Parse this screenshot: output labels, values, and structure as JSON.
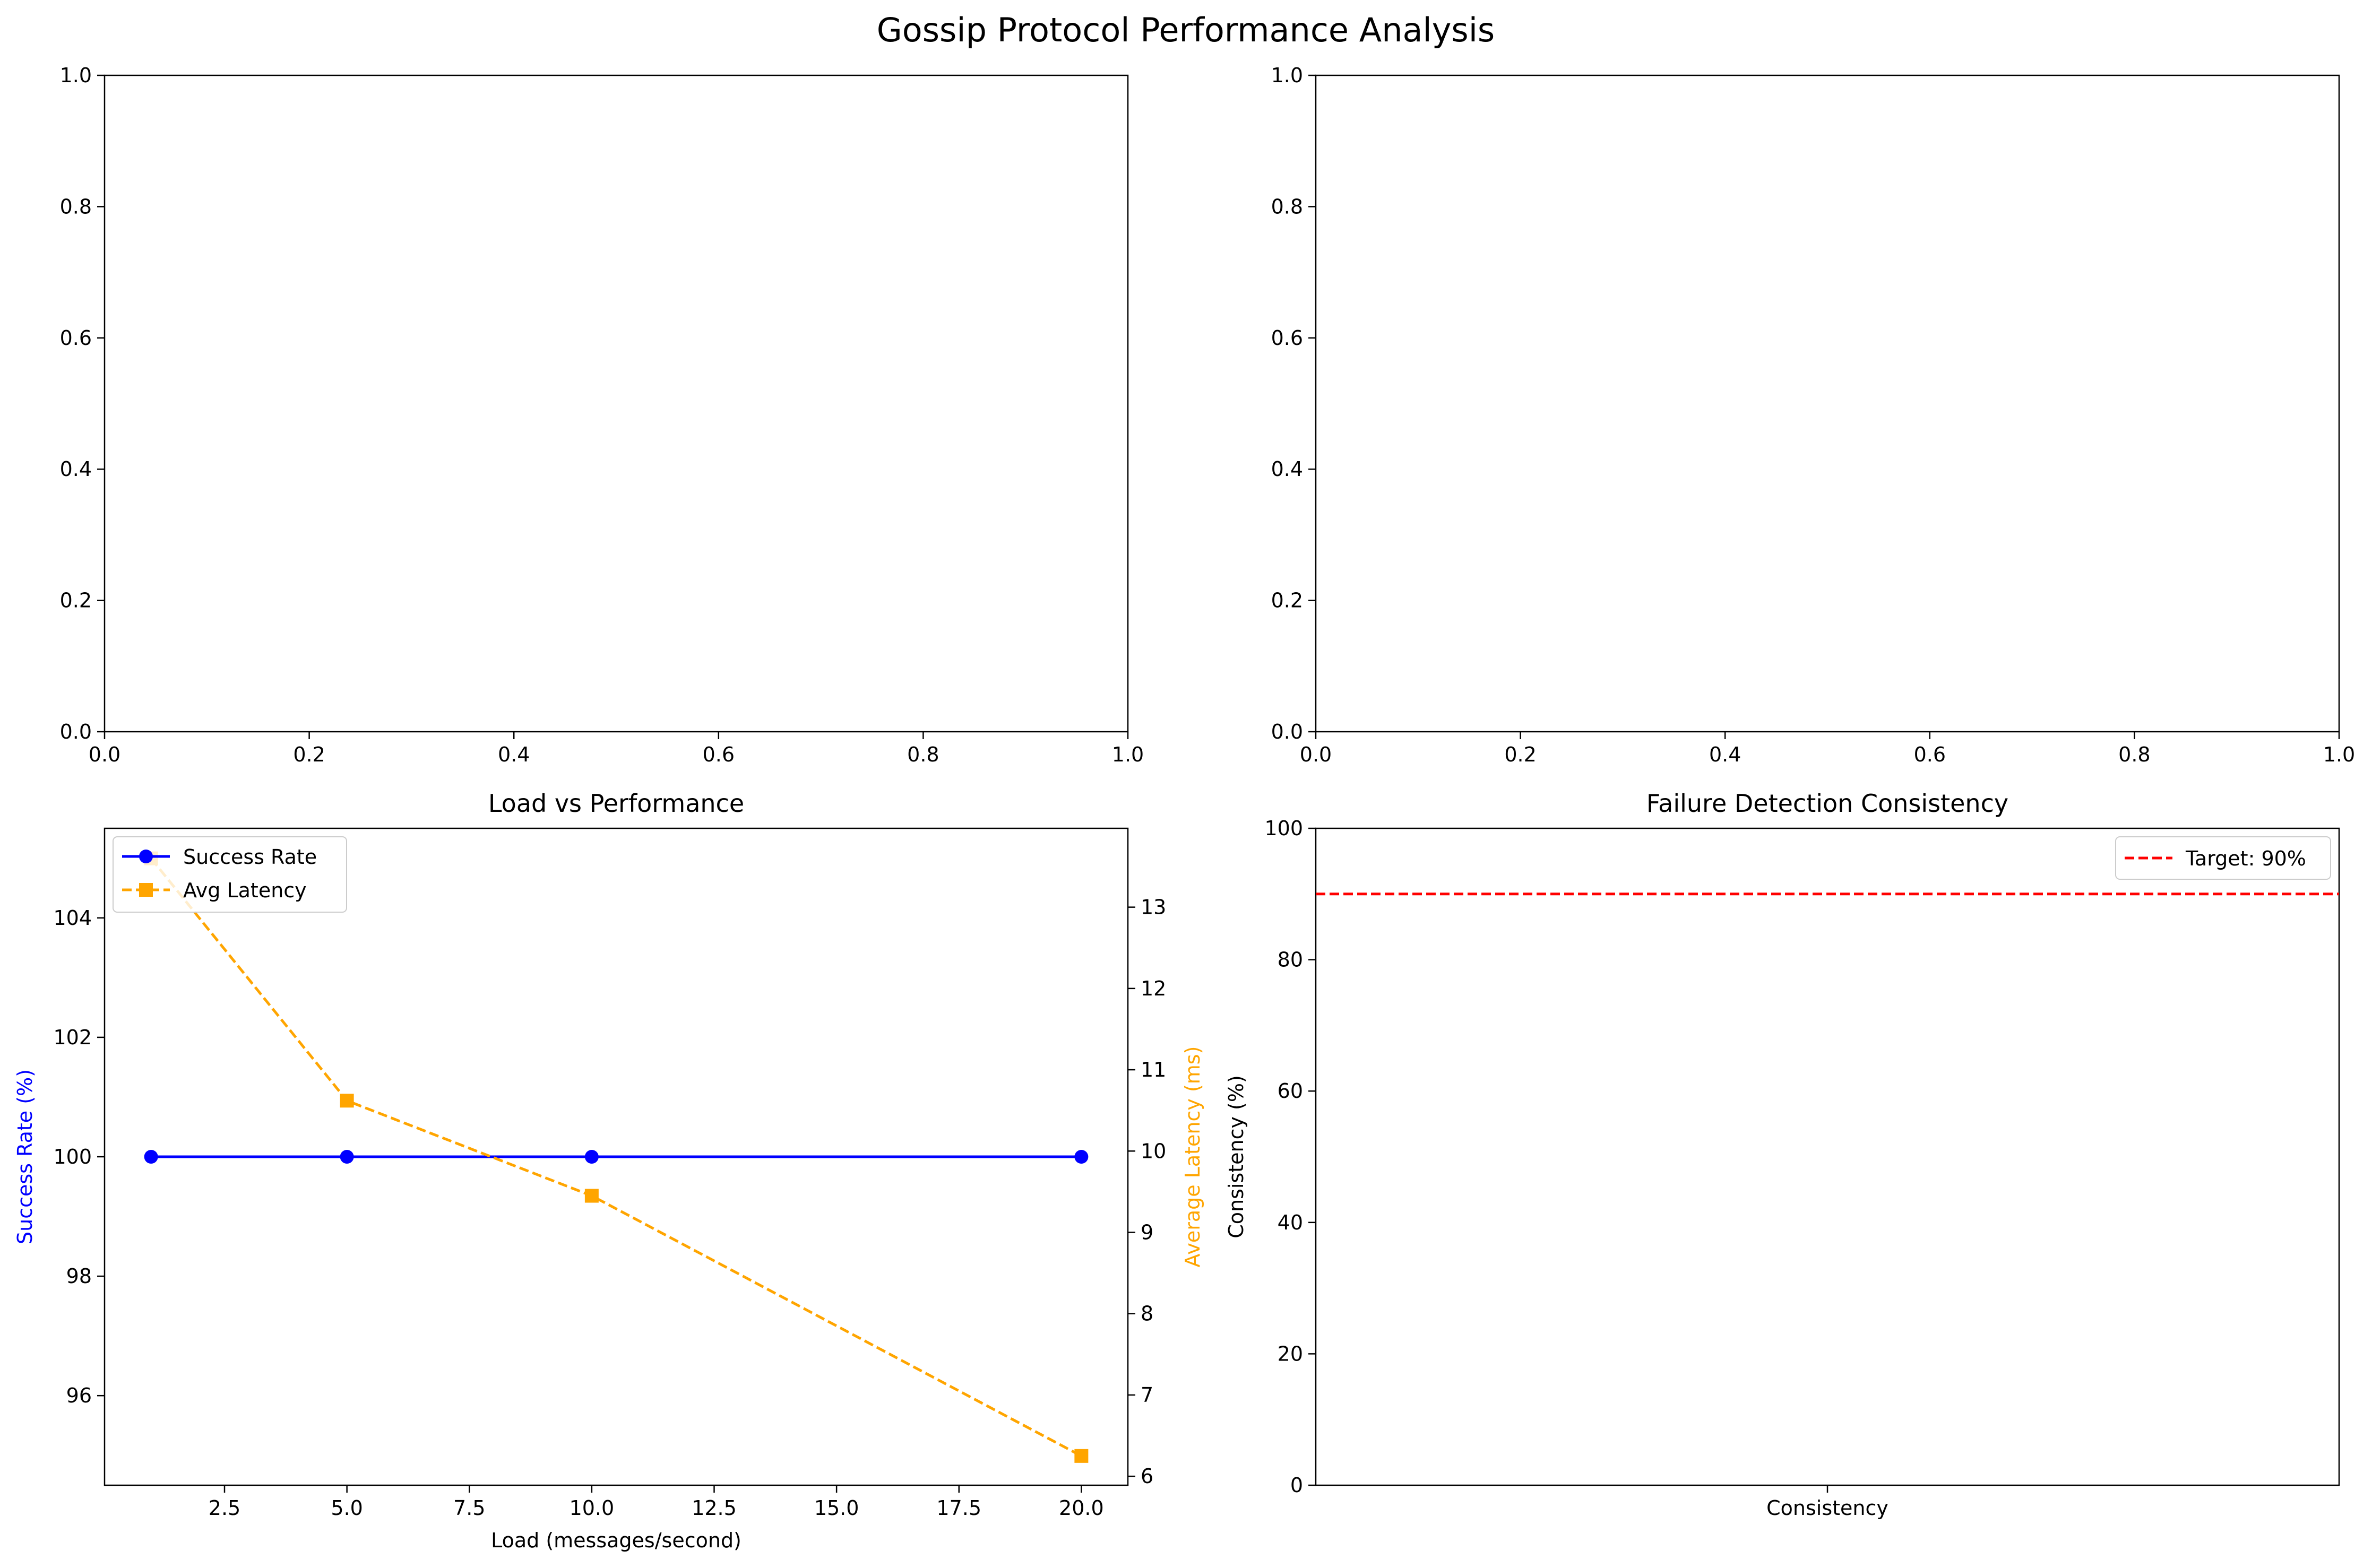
{
  "figure": {
    "title": "Gossip Protocol Performance Analysis"
  },
  "chart_data": [
    {
      "type": "line",
      "title": "",
      "xlabel": "",
      "ylabel": "",
      "xlim": [
        0,
        1
      ],
      "ylim": [
        0,
        1
      ],
      "xticks": [
        "0.0",
        "0.2",
        "0.4",
        "0.6",
        "0.8",
        "1.0"
      ],
      "yticks": [
        "0.0",
        "0.2",
        "0.4",
        "0.6",
        "0.8",
        "1.0"
      ],
      "series": []
    },
    {
      "type": "line",
      "title": "",
      "xlabel": "",
      "ylabel": "",
      "xlim": [
        0,
        1
      ],
      "ylim": [
        0,
        1
      ],
      "xticks": [
        "0.0",
        "0.2",
        "0.4",
        "0.6",
        "0.8",
        "1.0"
      ],
      "yticks": [
        "0.0",
        "0.2",
        "0.4",
        "0.6",
        "0.8",
        "1.0"
      ],
      "series": []
    },
    {
      "type": "line",
      "title": "Load vs Performance",
      "xlabel": "Load (messages/second)",
      "ylabel": "Success Rate (%)",
      "ylabel_right": "Average Latency (ms)",
      "xlim": [
        0.05,
        20.95
      ],
      "ylim": [
        94.5,
        105.5
      ],
      "ylim_right": [
        5.89,
        13.97
      ],
      "xticks": [
        "2.5",
        "5.0",
        "7.5",
        "10.0",
        "12.5",
        "15.0",
        "17.5",
        "20.0"
      ],
      "yticks": [
        "96",
        "98",
        "100",
        "102",
        "104"
      ],
      "yticks_right": [
        "6",
        "7",
        "8",
        "9",
        "10",
        "11",
        "12",
        "13"
      ],
      "x": [
        1,
        5,
        10,
        20
      ],
      "series": [
        {
          "name": "Success Rate",
          "axis": "left",
          "values": [
            100,
            100,
            100,
            100
          ],
          "color": "#0000ff",
          "marker": "circle",
          "style": "solid"
        },
        {
          "name": "Avg Latency",
          "axis": "right",
          "values": [
            13.6,
            10.62,
            9.45,
            6.25
          ],
          "color": "#ffa500",
          "marker": "square",
          "style": "dashed"
        }
      ],
      "legend": "upper-left"
    },
    {
      "type": "bar",
      "title": "Failure Detection Consistency",
      "xlabel": "",
      "ylabel": "Consistency (%)",
      "ylim": [
        0,
        100
      ],
      "yticks": [
        "0",
        "20",
        "40",
        "60",
        "80",
        "100"
      ],
      "categories": [
        "Consistency"
      ],
      "values": [
        0
      ],
      "reference_line": {
        "label": "Target: 90%",
        "value": 90,
        "color": "#ff0000",
        "style": "dashed"
      },
      "legend": "upper-right"
    }
  ]
}
